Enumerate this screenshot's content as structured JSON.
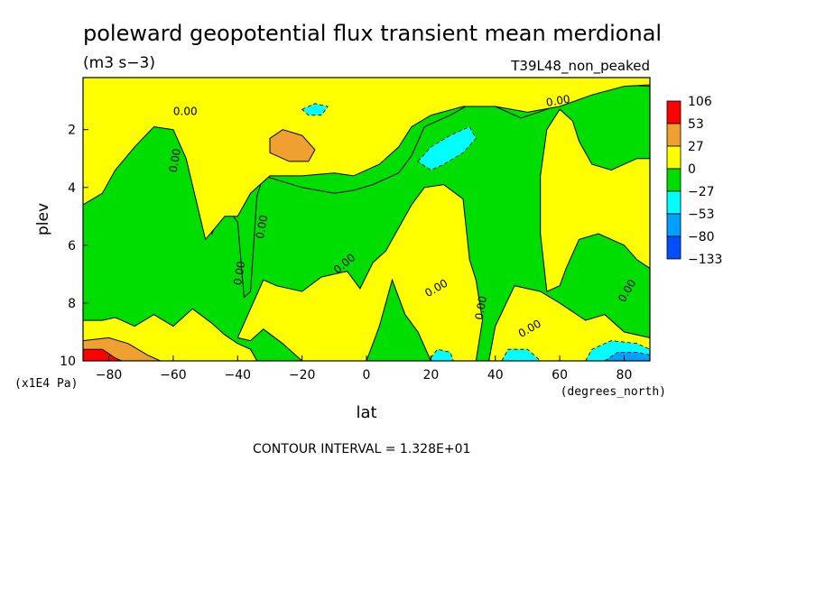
{
  "chart_data": {
    "type": "heatmap",
    "title": "poleward geopotential flux transient mean merdional",
    "units": "(m3 s−3)",
    "run_label": "T39L48_non_peaked",
    "xlabel": "lat",
    "ylabel": "plev",
    "x_unit": "(degrees_north)",
    "y_unit": "(x1E4 Pa)",
    "x_ticks": [
      -80,
      -60,
      -40,
      -20,
      0,
      20,
      40,
      60,
      80
    ],
    "y_ticks": [
      2,
      4,
      6,
      8,
      10
    ],
    "xlim": [
      -88,
      88
    ],
    "ylim": [
      10,
      0.2
    ],
    "footer": "CONTOUR INTERVAL = 1.328E+01",
    "contour_label": "0.00",
    "colorbar": {
      "labels": [
        "106",
        "53",
        "27",
        "0",
        "−27",
        "−53",
        "−80",
        "−133"
      ],
      "colors": [
        "#ff0000",
        "#f0a030",
        "#ffff00",
        "#00dd00",
        "#00ffff",
        "#00a0ff",
        "#0050ff"
      ]
    },
    "regions": [
      {
        "level": -1,
        "name": "sh-polar-negative",
        "points": [
          [
            -88,
            0.3
          ],
          [
            -80,
            0.9
          ],
          [
            -70,
            1.3
          ],
          [
            -60,
            1.7
          ],
          [
            -52,
            2.9
          ],
          [
            -48,
            5.6
          ],
          [
            -44,
            4.6
          ],
          [
            -40,
            5.2
          ],
          [
            -38,
            7.8
          ],
          [
            -36,
            7.6
          ],
          [
            -34,
            4.3
          ],
          [
            -32,
            3.6
          ],
          [
            -20,
            4.0
          ],
          [
            -10,
            4.2
          ],
          [
            -4,
            4.1
          ],
          [
            2,
            3.9
          ],
          [
            10,
            3.5
          ],
          [
            14,
            2.9
          ],
          [
            18,
            1.9
          ],
          [
            26,
            1.5
          ],
          [
            34,
            1.0
          ],
          [
            40,
            1.2
          ],
          [
            48,
            1.6
          ],
          [
            56,
            1.3
          ],
          [
            66,
            0.7
          ],
          [
            76,
            0.45
          ],
          [
            86,
            0.35
          ],
          [
            88,
            0.35
          ],
          [
            88,
            10
          ],
          [
            -88,
            10
          ]
        ]
      },
      {
        "level": 0,
        "name": "sh-yellow-lower",
        "points": [
          [
            -88,
            10
          ],
          [
            -88,
            8.6
          ],
          [
            -82,
            8.6
          ],
          [
            -78,
            8.5
          ],
          [
            -72,
            8.8
          ],
          [
            -66,
            8.4
          ],
          [
            -60,
            8.8
          ],
          [
            -54,
            8.2
          ],
          [
            -48,
            8.7
          ],
          [
            -44,
            9.1
          ],
          [
            -40,
            9.4
          ],
          [
            -36,
            9.6
          ],
          [
            -34,
            10
          ]
        ]
      },
      {
        "level": 0,
        "name": "midlat-yellow",
        "points": [
          [
            -40,
            9.2
          ],
          [
            -36,
            8.2
          ],
          [
            -32,
            7.2
          ],
          [
            -28,
            7.4
          ],
          [
            -20,
            7.6
          ],
          [
            -14,
            7.1
          ],
          [
            -6,
            6.9
          ],
          [
            -2,
            7.5
          ],
          [
            2,
            6.6
          ],
          [
            6,
            6.2
          ],
          [
            10,
            5.4
          ],
          [
            14,
            4.6
          ],
          [
            18,
            4.0
          ],
          [
            24,
            3.9
          ],
          [
            30,
            4.4
          ],
          [
            32,
            6.5
          ],
          [
            34,
            7.2
          ],
          [
            36,
            8.6
          ],
          [
            34,
            10
          ],
          [
            20,
            10
          ],
          [
            16,
            9.0
          ],
          [
            12,
            8.4
          ],
          [
            8,
            7.2
          ],
          [
            4,
            8.8
          ],
          [
            0,
            10
          ],
          [
            -20,
            10
          ],
          [
            -26,
            9.4
          ],
          [
            -32,
            8.9
          ],
          [
            -36,
            9.3
          ]
        ]
      },
      {
        "level": 0,
        "name": "nh-yellow-lower",
        "points": [
          [
            38,
            10
          ],
          [
            40,
            8.8
          ],
          [
            46,
            7.4
          ],
          [
            54,
            7.6
          ],
          [
            60,
            8.0
          ],
          [
            68,
            8.6
          ],
          [
            74,
            8.4
          ],
          [
            80,
            9.0
          ],
          [
            88,
            9.2
          ],
          [
            88,
            10
          ]
        ]
      },
      {
        "level": 0,
        "name": "top-yellow",
        "points": [
          [
            -88,
            0.2
          ],
          [
            88,
            0.2
          ],
          [
            88,
            0.5
          ],
          [
            80,
            0.45
          ],
          [
            70,
            0.55
          ],
          [
            60,
            0.9
          ],
          [
            50,
            0.95
          ],
          [
            40,
            1.0
          ],
          [
            30,
            1.1
          ],
          [
            22,
            1.4
          ],
          [
            12,
            1.5
          ],
          [
            4,
            1.3
          ],
          [
            -4,
            1.1
          ],
          [
            -10,
            0.9
          ],
          [
            -20,
            0.8
          ],
          [
            -30,
            0.7
          ],
          [
            -40,
            0.65
          ],
          [
            -50,
            0.55
          ],
          [
            -60,
            0.45
          ],
          [
            -70,
            0.45
          ],
          [
            -80,
            0.45
          ],
          [
            -88,
            0.4
          ]
        ]
      },
      {
        "level": 0,
        "name": "upper-yellow",
        "points": [
          [
            -88,
            0.2
          ],
          [
            -88,
            4.6
          ],
          [
            -82,
            4.2
          ],
          [
            -78,
            3.4
          ],
          [
            -72,
            2.6
          ],
          [
            -66,
            1.9
          ],
          [
            -60,
            2.0
          ],
          [
            -56,
            3.0
          ],
          [
            -50,
            5.8
          ],
          [
            -44,
            5.0
          ],
          [
            -40,
            5.0
          ],
          [
            -36,
            4.2
          ],
          [
            -30,
            3.6
          ],
          [
            -20,
            3.6
          ],
          [
            -10,
            3.5
          ],
          [
            -4,
            3.6
          ],
          [
            4,
            3.2
          ],
          [
            10,
            2.6
          ],
          [
            14,
            1.9
          ],
          [
            20,
            1.5
          ],
          [
            30,
            1.2
          ],
          [
            40,
            1.2
          ],
          [
            50,
            1.4
          ],
          [
            60,
            1.2
          ],
          [
            70,
            0.8
          ],
          [
            80,
            0.5
          ],
          [
            88,
            0.45
          ],
          [
            88,
            0.2
          ]
        ]
      },
      {
        "level": 0,
        "name": "nh-mid-yellow",
        "points": [
          [
            56,
            2.0
          ],
          [
            60,
            1.3
          ],
          [
            64,
            1.7
          ],
          [
            66,
            2.4
          ],
          [
            70,
            3.2
          ],
          [
            76,
            3.4
          ],
          [
            84,
            3.0
          ],
          [
            88,
            3.0
          ],
          [
            88,
            6.8
          ],
          [
            84,
            6.5
          ],
          [
            80,
            6.0
          ],
          [
            72,
            5.6
          ],
          [
            66,
            5.8
          ],
          [
            62,
            6.8
          ],
          [
            60,
            7.4
          ],
          [
            56,
            7.6
          ],
          [
            54,
            5.6
          ],
          [
            54,
            3.6
          ]
        ]
      },
      {
        "level": 1,
        "name": "sh-orange-upper",
        "points": [
          [
            -30,
            2.3
          ],
          [
            -26,
            2.0
          ],
          [
            -20,
            2.2
          ],
          [
            -16,
            2.7
          ],
          [
            -18,
            3.1
          ],
          [
            -24,
            3.1
          ],
          [
            -30,
            2.8
          ]
        ]
      },
      {
        "level": 1,
        "name": "sh-orange-surface",
        "points": [
          [
            -88,
            9.3
          ],
          [
            -80,
            9.2
          ],
          [
            -74,
            9.4
          ],
          [
            -68,
            9.8
          ],
          [
            -64,
            10
          ],
          [
            -88,
            10
          ]
        ]
      },
      {
        "level": 2,
        "name": "sh-red-surface",
        "points": [
          [
            -88,
            9.6
          ],
          [
            -82,
            9.6
          ],
          [
            -78,
            9.9
          ],
          [
            -76,
            10
          ],
          [
            -88,
            10
          ]
        ]
      },
      {
        "level": -2,
        "name": "cyan-upper-sh",
        "points": [
          [
            -20,
            1.3
          ],
          [
            -16,
            1.1
          ],
          [
            -12,
            1.2
          ],
          [
            -14,
            1.5
          ],
          [
            -18,
            1.5
          ]
        ]
      },
      {
        "level": -2,
        "name": "cyan-upper-nh",
        "points": [
          [
            16,
            3.1
          ],
          [
            20,
            2.6
          ],
          [
            26,
            2.2
          ],
          [
            32,
            1.9
          ],
          [
            34,
            2.3
          ],
          [
            30,
            2.8
          ],
          [
            24,
            3.2
          ],
          [
            20,
            3.4
          ]
        ]
      },
      {
        "level": -2,
        "name": "cyan-surface-a",
        "points": [
          [
            20,
            9.9
          ],
          [
            22,
            9.6
          ],
          [
            26,
            9.7
          ],
          [
            27,
            10
          ],
          [
            20,
            10
          ]
        ]
      },
      {
        "level": -2,
        "name": "cyan-surface-b",
        "points": [
          [
            42,
            10
          ],
          [
            44,
            9.6
          ],
          [
            50,
            9.6
          ],
          [
            54,
            10
          ]
        ]
      },
      {
        "level": -2,
        "name": "cyan-surface-c",
        "points": [
          [
            68,
            10
          ],
          [
            70,
            9.6
          ],
          [
            76,
            9.3
          ],
          [
            84,
            9.4
          ],
          [
            88,
            9.6
          ],
          [
            88,
            10
          ]
        ]
      },
      {
        "level": -3,
        "name": "blue-surface-c",
        "points": [
          [
            74,
            10
          ],
          [
            78,
            9.7
          ],
          [
            84,
            9.7
          ],
          [
            88,
            9.8
          ],
          [
            88,
            10
          ]
        ]
      }
    ],
    "contour_label_positions": [
      [
        -60,
        1.5,
        0
      ],
      [
        56,
        1.2,
        -10
      ],
      [
        -59,
        3.5,
        -80
      ],
      [
        -39,
        7.4,
        -80
      ],
      [
        -32,
        5.8,
        -80
      ],
      [
        -9,
        7.0,
        -40
      ],
      [
        19,
        7.8,
        -30
      ],
      [
        36,
        8.6,
        -80
      ],
      [
        48,
        9.2,
        -30
      ],
      [
        80,
        8.0,
        -60
      ]
    ]
  }
}
